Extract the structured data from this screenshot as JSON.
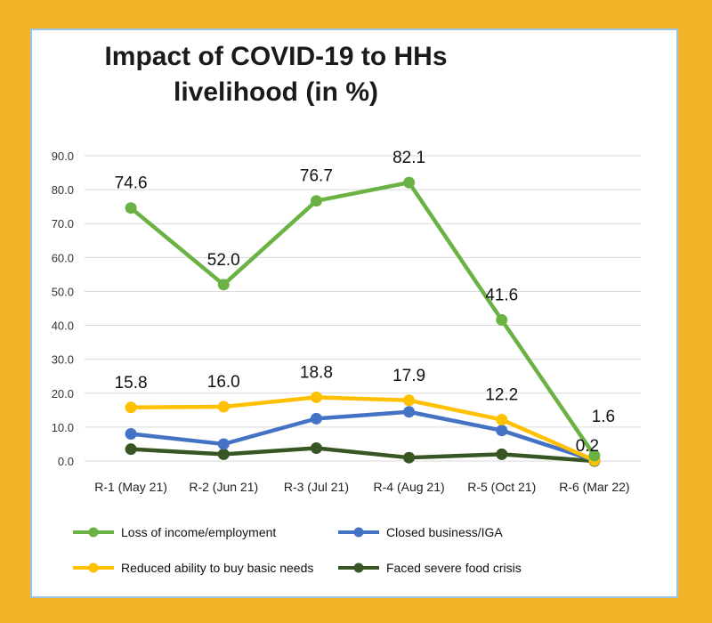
{
  "chart_data": {
    "type": "line",
    "title_line1": "Impact of COVID-19 to HHs",
    "title_line2": "livelihood (in %)",
    "categories": [
      "R-1 (May 21)",
      "R-2 (Jun 21)",
      "R-3 (Jul 21)",
      "R-4 (Aug 21)",
      "R-5 (Oct 21)",
      "R-6 (Mar 22)"
    ],
    "ylim": [
      0,
      90
    ],
    "yticks": [
      "0.0",
      "10.0",
      "20.0",
      "30.0",
      "40.0",
      "50.0",
      "60.0",
      "70.0",
      "80.0",
      "90.0"
    ],
    "grid": true,
    "legend_position": "bottom",
    "series": [
      {
        "name": "Loss of income/employment",
        "color": "#6BB244",
        "values": [
          74.6,
          52.0,
          76.7,
          82.1,
          41.6,
          1.6
        ],
        "labels": [
          "74.6",
          "52.0",
          "76.7",
          "82.1",
          "41.6",
          "1.6"
        ]
      },
      {
        "name": "Closed business/IGA",
        "color": "#4472C4",
        "values": [
          8.0,
          5.0,
          12.5,
          14.5,
          9.0,
          0.2
        ],
        "labels": []
      },
      {
        "name": "Reduced ability to buy basic needs",
        "color": "#FFC000",
        "values": [
          15.8,
          16.0,
          18.8,
          17.9,
          12.2,
          0.2
        ],
        "labels": [
          "15.8",
          "16.0",
          "18.8",
          "17.9",
          "12.2",
          "0.2"
        ]
      },
      {
        "name": "Faced severe food crisis",
        "color": "#375623",
        "values": [
          3.5,
          2.0,
          3.8,
          1.0,
          2.0,
          0.0
        ],
        "labels": []
      }
    ]
  }
}
